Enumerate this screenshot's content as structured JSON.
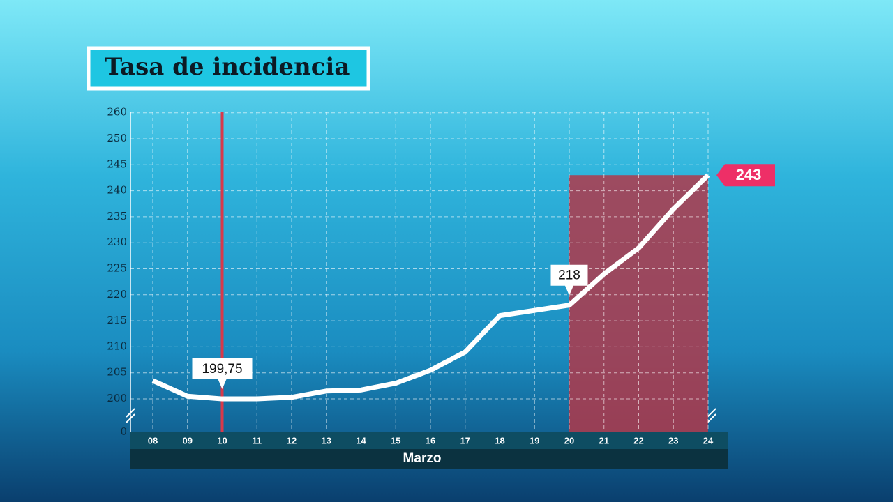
{
  "chart_data": {
    "type": "line",
    "title": "Tasa de incidencia",
    "x_label": "Marzo",
    "categories": [
      "08",
      "09",
      "10",
      "11",
      "12",
      "13",
      "14",
      "15",
      "16",
      "17",
      "18",
      "19",
      "20",
      "21",
      "22",
      "23",
      "24"
    ],
    "series": [
      {
        "name": "Tasa de incidencia",
        "color": "#ffffff",
        "values": [
          203.5,
          200.5,
          199.75,
          200,
          200.3,
          201.5,
          201.7,
          203,
          205.5,
          209,
          216,
          217,
          218,
          224,
          229,
          236.5,
          243
        ],
        "value_labels": [
          null,
          null,
          "199,75",
          null,
          null,
          null,
          null,
          null,
          null,
          null,
          null,
          null,
          "218",
          null,
          null,
          null,
          "243"
        ]
      }
    ],
    "ylim": [
      0,
      260
    ],
    "yticks": [
      0,
      200,
      205,
      210,
      215,
      220,
      225,
      230,
      235,
      240,
      245,
      250,
      260
    ],
    "grid": true,
    "highlight_range": [
      "20",
      "24"
    ],
    "highlight_color": "#b0384a",
    "reference_line": "10",
    "reference_color": "#d8394a"
  }
}
